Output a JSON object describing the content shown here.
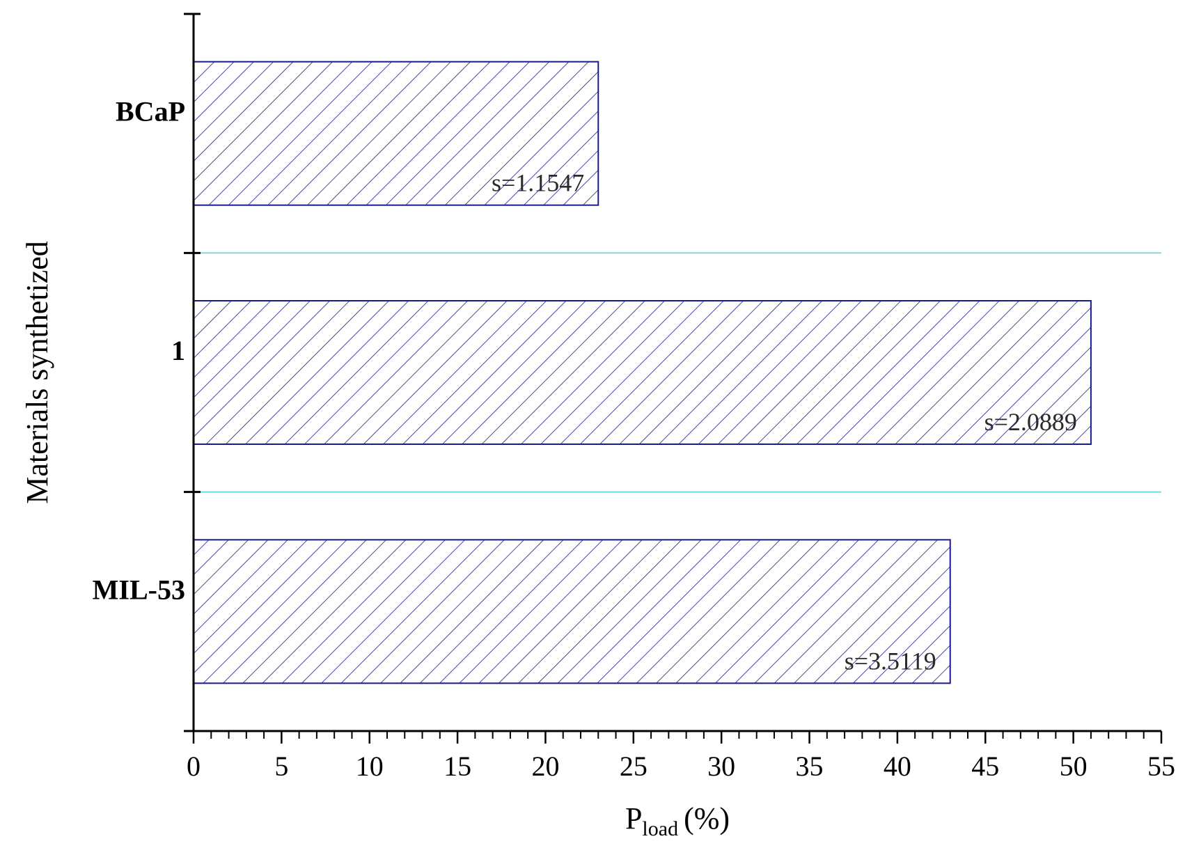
{
  "chart_data": {
    "type": "bar",
    "orientation": "horizontal",
    "categories": [
      "BCaP",
      "1",
      "MIL-53"
    ],
    "values": [
      23,
      51,
      43
    ],
    "annotations": [
      "s=1.1547",
      "s=2.0889",
      "s=3.5119"
    ],
    "xlabel": {
      "main": "P",
      "sub": "load",
      "unit": "(%)"
    },
    "ylabel": "Materials synthetized",
    "xlim": [
      0,
      55
    ],
    "xticks": [
      "0",
      "5",
      "10",
      "15",
      "20",
      "25",
      "30",
      "35",
      "40",
      "45",
      "50",
      "55"
    ],
    "minor_ticks_per_major": 5,
    "grid": "horizontal separators between categories",
    "colors": {
      "bar_edge": "#1a1a8c",
      "hatch": "#1a1a8c",
      "separator": "#5fd3dd",
      "axis": "#000000"
    },
    "bar_fill": "diagonal hatch"
  }
}
